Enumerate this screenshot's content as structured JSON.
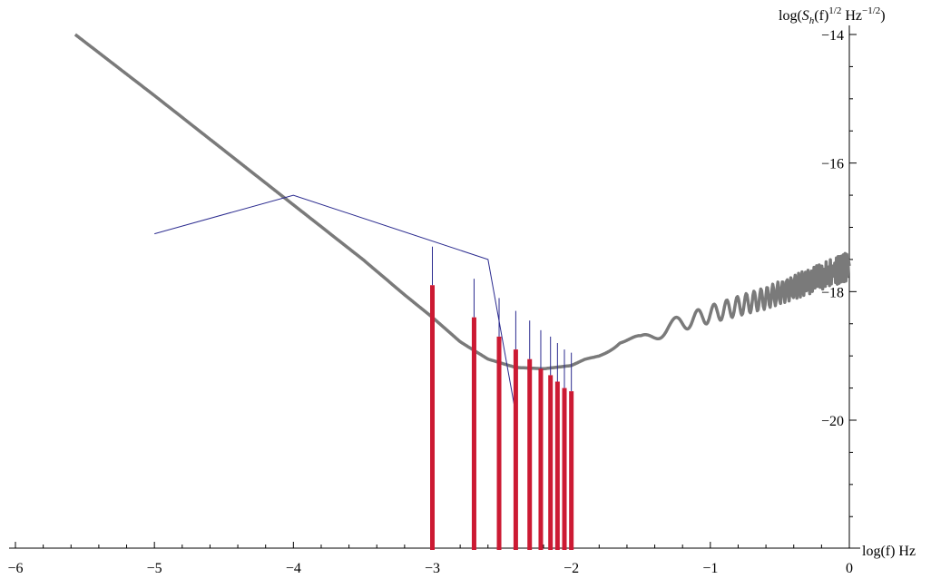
{
  "chart_data": {
    "type": "line",
    "title": "",
    "xlabel": "log(f) Hz",
    "ylabel_parts": {
      "pre": "log(",
      "S": "S",
      "h": "h",
      "mid": "(f)",
      "exp1": "1/2",
      "hz": " Hz",
      "exp2": "−1/2",
      "post": ")"
    },
    "xlim": [
      -6,
      0
    ],
    "ylim": [
      -22,
      -14
    ],
    "x_ticks": [
      "−6",
      "−5",
      "−4",
      "−3",
      "−2",
      "−1",
      "0"
    ],
    "y_ticks": [
      "−14",
      "−16",
      "−18",
      "−20"
    ],
    "series": [
      {
        "kind": "noise-curve",
        "color": "#7a7a7a",
        "points": [
          [
            -5.57,
            -14.0
          ],
          [
            -5.0,
            -14.95
          ],
          [
            -4.5,
            -15.8
          ],
          [
            -4.0,
            -16.65
          ],
          [
            -3.5,
            -17.5
          ],
          [
            -3.2,
            -18.05
          ],
          [
            -3.0,
            -18.4
          ],
          [
            -2.8,
            -18.78
          ],
          [
            -2.6,
            -19.05
          ],
          [
            -2.4,
            -19.18
          ],
          [
            -2.2,
            -19.2
          ],
          [
            -2.0,
            -19.15
          ],
          [
            -1.8,
            -18.95
          ],
          [
            -1.65,
            -18.75
          ],
          [
            -1.5,
            -18.78
          ],
          [
            -1.3,
            -18.55
          ],
          [
            -1.0,
            -18.35
          ],
          [
            -0.6,
            -18.1
          ],
          [
            0.0,
            -17.6
          ]
        ]
      },
      {
        "kind": "envelope",
        "color": "#2b2b8f",
        "points": [
          [
            -5.0,
            -17.1
          ],
          [
            -4.0,
            -16.5
          ],
          [
            -2.6,
            -17.5
          ],
          [
            -2.4,
            -19.9
          ]
        ]
      }
    ],
    "harmonics": {
      "color_signal": "#cc1a33",
      "color_error": "#2b2b8f",
      "bars": [
        {
          "x": -3.0,
          "value": -17.9,
          "upper": -17.3
        },
        {
          "x": -2.7,
          "value": -18.4,
          "upper": -17.8
        },
        {
          "x": -2.52,
          "value": -18.7,
          "upper": -18.1
        },
        {
          "x": -2.4,
          "value": -18.9,
          "upper": -18.3
        },
        {
          "x": -2.3,
          "value": -19.05,
          "upper": -18.45
        },
        {
          "x": -2.22,
          "value": -19.2,
          "upper": -18.6
        },
        {
          "x": -2.15,
          "value": -19.3,
          "upper": -18.7
        },
        {
          "x": -2.1,
          "value": -19.4,
          "upper": -18.8
        },
        {
          "x": -2.05,
          "value": -19.5,
          "upper": -18.9
        },
        {
          "x": -2.0,
          "value": -19.55,
          "upper": -18.95
        }
      ]
    }
  }
}
